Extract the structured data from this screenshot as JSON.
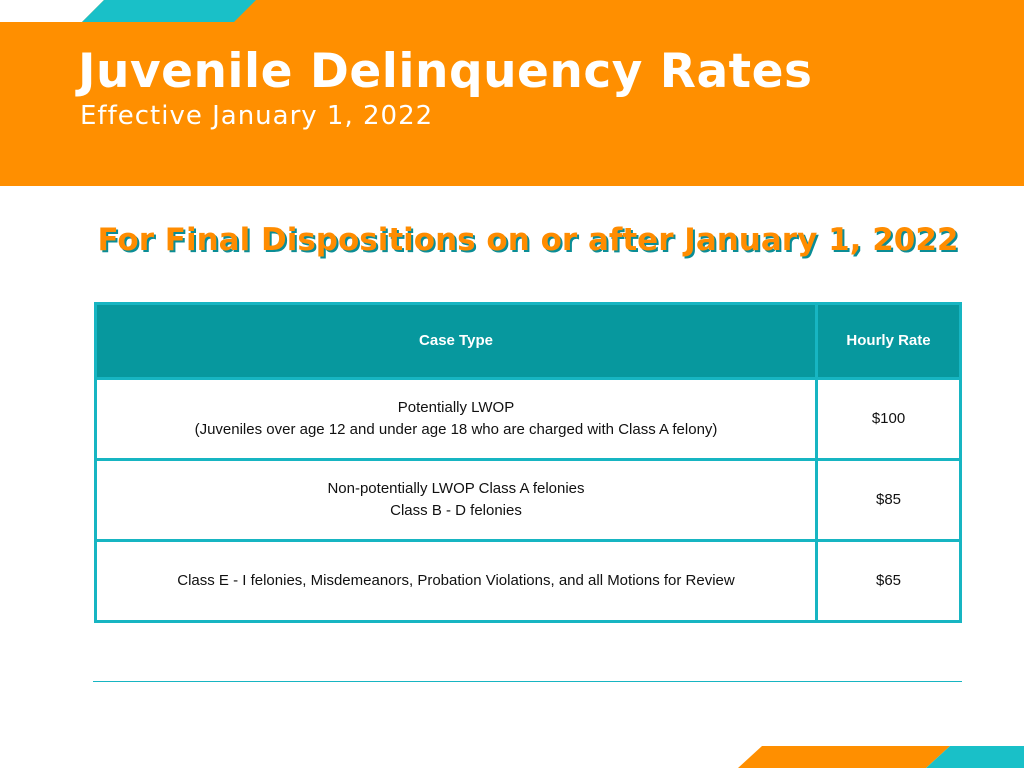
{
  "header": {
    "title": "Juvenile Delinquency Rates",
    "subtitle": "Effective January 1, 2022"
  },
  "heading": "For Final Dispositions on or after January 1, 2022",
  "table": {
    "columns": [
      "Case Type",
      "Hourly Rate"
    ],
    "rows": [
      [
        [
          "Potentially LWOP",
          "(Juveniles over age 12 and under age 18 who are charged with Class A felony)"
        ],
        [
          "$100"
        ]
      ],
      [
        [
          "Non-potentially LWOP Class A felonies",
          "Class B - D felonies"
        ],
        [
          "$85"
        ]
      ],
      [
        [
          "Class E - I felonies, Misdemeanors, Probation Violations, and all Motions for Review"
        ],
        [
          "$65"
        ]
      ]
    ]
  }
}
